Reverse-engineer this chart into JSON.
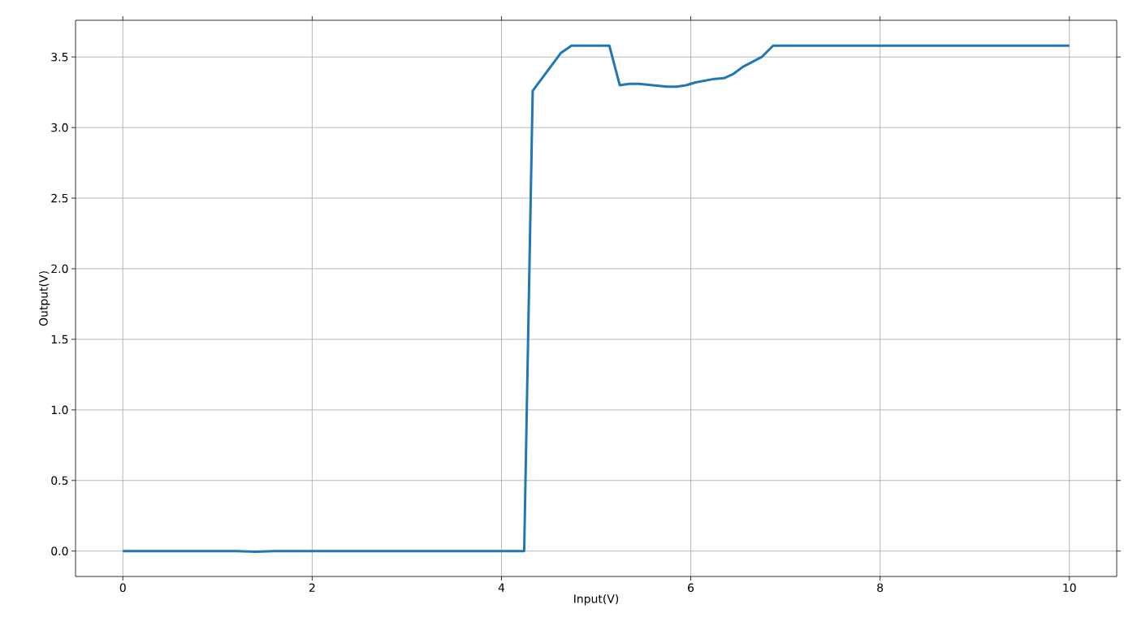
{
  "chart_data": {
    "type": "line",
    "xlabel": "Input(V)",
    "ylabel": "Output(V)",
    "x": [
      0,
      1.2,
      1.4,
      1.6,
      4.24,
      4.33,
      4.63,
      4.74,
      5.14,
      5.25,
      5.35,
      5.45,
      5.6,
      5.75,
      5.85,
      5.95,
      6.05,
      6.25,
      6.35,
      6.45,
      6.55,
      6.75,
      6.87,
      10
    ],
    "series": [
      {
        "color": "#1f77b4",
        "values": [
          0,
          0,
          -0.005,
          0,
          0,
          3.26,
          3.53,
          3.58,
          3.58,
          3.3,
          3.31,
          3.31,
          3.3,
          3.29,
          3.29,
          3.3,
          3.32,
          3.345,
          3.35,
          3.38,
          3.43,
          3.5,
          3.58,
          3.58
        ]
      }
    ],
    "xlim": [
      -0.5,
      10.5
    ],
    "ylim": [
      -0.18,
      3.76
    ],
    "xticks": [
      0,
      2,
      4,
      6,
      8,
      10
    ],
    "yticks": [
      {
        "value": 0,
        "label": "0.0"
      },
      {
        "value": 0.5,
        "label": "0.5"
      },
      {
        "value": 1,
        "label": "1.0"
      },
      {
        "value": 1.5,
        "label": "1.5"
      },
      {
        "value": 2,
        "label": "2.0"
      },
      {
        "value": 2.5,
        "label": "2.5"
      },
      {
        "value": 3,
        "label": "3.0"
      },
      {
        "value": 3.5,
        "label": "3.5"
      }
    ],
    "grid": true,
    "marker": "none",
    "line_style": "solid"
  }
}
